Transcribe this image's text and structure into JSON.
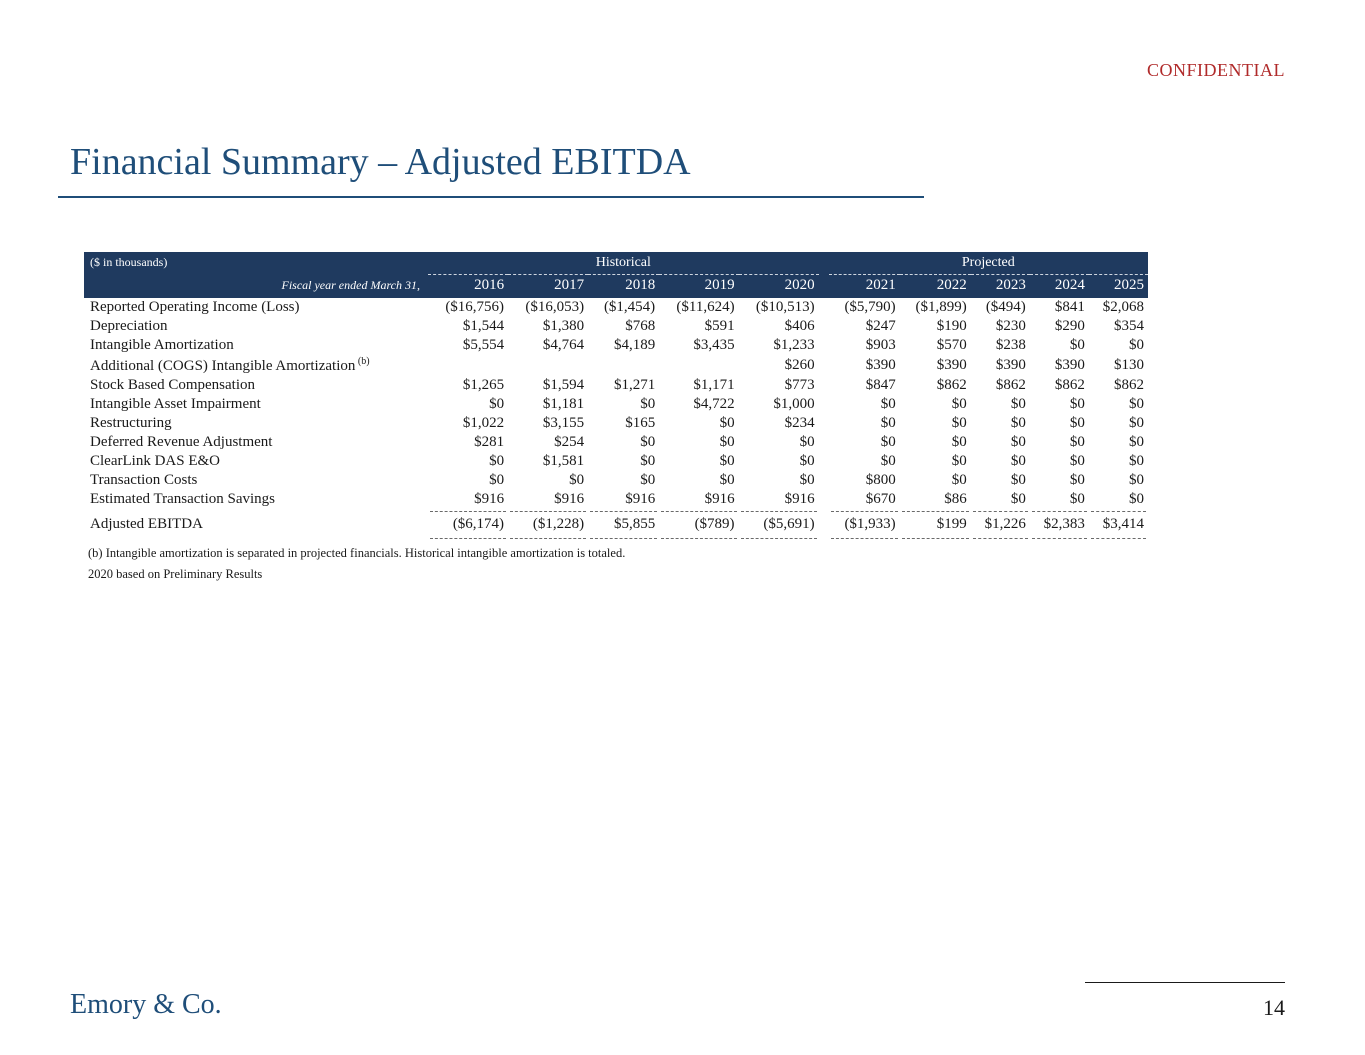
{
  "header": {
    "confidential": "CONFIDENTIAL",
    "title": "Financial Summary – Adjusted EBITDA"
  },
  "table": {
    "units": "($ in thousands)",
    "fiscal_year_label": "Fiscal year ended March 31,",
    "section_historical": "Historical",
    "section_projected": "Projected",
    "years": [
      "2016",
      "2017",
      "2018",
      "2019",
      "2020",
      "2021",
      "2022",
      "2023",
      "2024",
      "2025"
    ],
    "rows": [
      {
        "label": "Reported Operating Income (Loss)",
        "v": [
          "($16,756)",
          "($16,053)",
          "($1,454)",
          "($11,624)",
          "($10,513)",
          "($5,790)",
          "($1,899)",
          "($494)",
          "$841",
          "$2,068"
        ]
      },
      {
        "label": "Depreciation",
        "v": [
          "$1,544",
          "$1,380",
          "$768",
          "$591",
          "$406",
          "$247",
          "$190",
          "$230",
          "$290",
          "$354"
        ]
      },
      {
        "label": "Intangible Amortization",
        "v": [
          "$5,554",
          "$4,764",
          "$4,189",
          "$3,435",
          "$1,233",
          "$903",
          "$570",
          "$238",
          "$0",
          "$0"
        ]
      },
      {
        "label": "Additional (COGS) Intangible Amortization",
        "sup": "(b)",
        "v": [
          "",
          "",
          "",
          "",
          "$260",
          "$390",
          "$390",
          "$390",
          "$390",
          "$130"
        ]
      },
      {
        "label": "Stock Based Compensation",
        "v": [
          "$1,265",
          "$1,594",
          "$1,271",
          "$1,171",
          "$773",
          "$847",
          "$862",
          "$862",
          "$862",
          "$862"
        ]
      },
      {
        "label": "Intangible Asset Impairment",
        "v": [
          "$0",
          "$1,181",
          "$0",
          "$4,722",
          "$1,000",
          "$0",
          "$0",
          "$0",
          "$0",
          "$0"
        ]
      },
      {
        "label": "Restructuring",
        "v": [
          "$1,022",
          "$3,155",
          "$165",
          "$0",
          "$234",
          "$0",
          "$0",
          "$0",
          "$0",
          "$0"
        ]
      },
      {
        "label": "Deferred Revenue Adjustment",
        "v": [
          "$281",
          "$254",
          "$0",
          "$0",
          "$0",
          "$0",
          "$0",
          "$0",
          "$0",
          "$0"
        ]
      },
      {
        "label": "ClearLink DAS E&O",
        "v": [
          "$0",
          "$1,581",
          "$0",
          "$0",
          "$0",
          "$0",
          "$0",
          "$0",
          "$0",
          "$0"
        ]
      },
      {
        "label": "Transaction Costs",
        "v": [
          "$0",
          "$0",
          "$0",
          "$0",
          "$0",
          "$800",
          "$0",
          "$0",
          "$0",
          "$0"
        ]
      },
      {
        "label": "Estimated Transaction Savings",
        "v": [
          "$916",
          "$916",
          "$916",
          "$916",
          "$916",
          "$670",
          "$86",
          "$0",
          "$0",
          "$0"
        ]
      }
    ],
    "total": {
      "label": "Adjusted EBITDA",
      "v": [
        "($6,174)",
        "($1,228)",
        "$5,855",
        "($789)",
        "($5,691)",
        "($1,933)",
        "$199",
        "$1,226",
        "$2,383",
        "$3,414"
      ]
    },
    "footnote_b": "(b) Intangible amortization is separated in projected financials. Historical intangible amortization is totaled.",
    "footnote_2020": "2020 based on Preliminary Results"
  },
  "footer": {
    "brand": "Emory & Co.",
    "page": "14"
  },
  "colors": {
    "title": "#1f4e79",
    "confidential": "#b02a2a",
    "header_bg": "#1f3a5f"
  }
}
